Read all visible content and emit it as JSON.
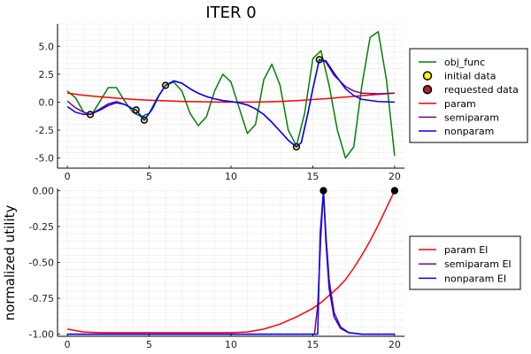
{
  "chart_data": [
    {
      "type": "line",
      "title": "ITER 0",
      "xlabel": "",
      "ylabel": "",
      "xlim": [
        -0.6,
        20.6
      ],
      "ylim": [
        -5.9,
        7.0
      ],
      "xticks": [
        0,
        5,
        10,
        15,
        20
      ],
      "xtick_labels": [
        "0",
        "5",
        "10",
        "15",
        "20"
      ],
      "yticks": [
        5.0,
        2.5,
        0.0,
        -2.5,
        -5.0
      ],
      "ytick_labels": [
        "5.0",
        "2.5",
        "0.0",
        "-2.5",
        "-5.0"
      ],
      "grid": true,
      "legend_position": "right",
      "series": [
        {
          "name": "obj_func",
          "kind": "line",
          "color": "#008000",
          "x": [
            0,
            0.5,
            1,
            1.5,
            2,
            2.5,
            3,
            3.5,
            4,
            4.5,
            5,
            5.5,
            6,
            6.5,
            7,
            7.5,
            8,
            8.5,
            9,
            9.5,
            10,
            10.5,
            11,
            11.5,
            12,
            12.5,
            13,
            13.5,
            14,
            14.5,
            15,
            15.5,
            16,
            16.5,
            17,
            17.5,
            18,
            18.5,
            19,
            19.5,
            20
          ],
          "y": [
            1.0,
            0.4,
            -0.9,
            -1.1,
            0.1,
            1.3,
            1.3,
            0.1,
            -0.9,
            -1.3,
            -1.0,
            0.4,
            1.5,
            1.8,
            1.0,
            -1.0,
            -2.1,
            -1.3,
            1.0,
            2.5,
            1.8,
            -0.5,
            -2.8,
            -2.0,
            2.0,
            3.4,
            1.5,
            -2.5,
            -3.9,
            -1.0,
            3.9,
            4.6,
            1.5,
            -2.5,
            -5.0,
            -4.0,
            1.5,
            5.8,
            6.3,
            2.0,
            -4.8
          ]
        },
        {
          "name": "initial data",
          "kind": "scatter",
          "color": "#ffff00",
          "edge": "#000000",
          "x": [
            1.4,
            4.2,
            4.7,
            6.0,
            14.0,
            15.4
          ],
          "y": [
            -1.1,
            -0.7,
            -1.6,
            1.5,
            -4.0,
            3.8
          ]
        },
        {
          "name": "requested data",
          "kind": "scatter",
          "color": "#b22222",
          "edge": "#000000",
          "x": [],
          "y": []
        },
        {
          "name": "param",
          "kind": "line",
          "color": "#ff0000",
          "x": [
            0,
            1,
            2,
            3,
            4,
            5,
            6,
            7,
            8,
            9,
            10,
            11,
            12,
            13,
            14,
            15,
            16,
            17,
            18,
            19,
            20
          ],
          "y": [
            0.8,
            0.62,
            0.48,
            0.36,
            0.26,
            0.18,
            0.12,
            0.07,
            0.04,
            0.02,
            0.0,
            0.0,
            0.03,
            0.07,
            0.14,
            0.23,
            0.34,
            0.46,
            0.58,
            0.7,
            0.8
          ]
        },
        {
          "name": "semiparam",
          "kind": "line",
          "color": "#800080",
          "x": [
            0,
            0.5,
            1,
            1.4,
            2,
            2.5,
            3,
            3.5,
            4,
            4.2,
            4.7,
            5.2,
            5.6,
            6.0,
            6.5,
            7,
            7.5,
            8,
            8.5,
            9,
            9.5,
            10,
            10.5,
            11,
            11.5,
            12,
            12.5,
            13,
            13.5,
            14,
            14.3,
            14.7,
            15,
            15.4,
            15.8,
            16.3,
            17,
            17.5,
            18,
            19,
            20
          ],
          "y": [
            0.1,
            -0.5,
            -0.9,
            -1.1,
            -0.6,
            -0.15,
            0.05,
            -0.2,
            -0.6,
            -0.7,
            -1.6,
            -0.6,
            0.6,
            1.5,
            1.9,
            1.7,
            1.2,
            0.8,
            0.5,
            0.3,
            0.15,
            0.05,
            -0.05,
            -0.25,
            -0.6,
            -1.1,
            -1.8,
            -2.6,
            -3.4,
            -4.0,
            -3.6,
            -1.0,
            1.2,
            3.8,
            3.6,
            2.4,
            1.4,
            1.0,
            0.8,
            0.75,
            0.8
          ]
        },
        {
          "name": "nonparam",
          "kind": "line",
          "color": "#0000ff",
          "x": [
            0,
            0.5,
            1,
            1.4,
            2,
            2.5,
            3,
            3.5,
            4,
            4.2,
            4.7,
            5.2,
            5.6,
            6.0,
            6.5,
            7,
            7.5,
            8,
            8.5,
            9,
            9.5,
            10,
            10.5,
            11,
            11.5,
            12,
            12.5,
            13,
            13.5,
            14,
            14.3,
            14.7,
            15,
            15.4,
            15.8,
            16.3,
            17,
            17.5,
            18,
            19,
            20
          ],
          "y": [
            -0.4,
            -0.9,
            -1.1,
            -1.1,
            -0.7,
            -0.3,
            -0.05,
            -0.2,
            -0.6,
            -0.7,
            -1.6,
            -0.6,
            0.6,
            1.5,
            1.9,
            1.7,
            1.2,
            0.8,
            0.5,
            0.3,
            0.15,
            0.05,
            -0.05,
            -0.25,
            -0.6,
            -1.1,
            -1.8,
            -2.6,
            -3.4,
            -4.0,
            -3.6,
            -1.0,
            1.2,
            3.8,
            3.7,
            2.6,
            1.2,
            0.6,
            0.25,
            0.05,
            0.0
          ]
        }
      ]
    },
    {
      "type": "line",
      "title": "",
      "xlabel": "",
      "ylabel": "normalized utility",
      "xlim": [
        -0.6,
        20.6
      ],
      "ylim": [
        -1.015,
        0.015
      ],
      "xticks": [
        0,
        5,
        10,
        15,
        20
      ],
      "xtick_labels": [
        "0",
        "5",
        "10",
        "15",
        "20"
      ],
      "yticks": [
        0.0,
        -0.25,
        -0.5,
        -0.75,
        -1.0
      ],
      "ytick_labels": [
        "0.00",
        "-0.25",
        "-0.50",
        "-0.75",
        "-1.00"
      ],
      "grid": true,
      "legend_position": "right",
      "series": [
        {
          "name": "param EI",
          "kind": "line",
          "color": "#ff0000",
          "x": [
            0,
            1,
            2,
            4,
            6,
            8,
            10,
            11,
            12,
            13,
            14,
            15,
            15.5,
            16,
            16.5,
            17,
            17.5,
            18,
            18.5,
            19,
            19.5,
            20
          ],
          "y": [
            -0.965,
            -0.985,
            -0.99,
            -0.99,
            -0.99,
            -0.99,
            -0.99,
            -0.985,
            -0.965,
            -0.93,
            -0.88,
            -0.82,
            -0.78,
            -0.73,
            -0.68,
            -0.62,
            -0.54,
            -0.45,
            -0.35,
            -0.24,
            -0.12,
            0.0
          ]
        },
        {
          "name": "semiparam EI",
          "kind": "line",
          "color": "#800080",
          "x": [
            0,
            5,
            10,
            15.1,
            15.3,
            15.5,
            15.65,
            15.8,
            16.0,
            16.3,
            16.7,
            17.2,
            18,
            19,
            20
          ],
          "y": [
            -1.0,
            -1.0,
            -1.0,
            -1.0,
            -0.8,
            -0.3,
            0.0,
            -0.3,
            -0.62,
            -0.85,
            -0.95,
            -0.99,
            -1.0,
            -1.0,
            -1.0
          ]
        },
        {
          "name": "nonparam EI",
          "kind": "line",
          "color": "#0000ff",
          "x": [
            0,
            5,
            10,
            15.3,
            15.45,
            15.65,
            15.8,
            16.0,
            16.3,
            16.7,
            17.2,
            18,
            19,
            20
          ],
          "y": [
            -1.0,
            -1.0,
            -1.0,
            -1.0,
            -0.3,
            0.0,
            -0.35,
            -0.68,
            -0.88,
            -0.96,
            -0.99,
            -1.0,
            -1.0,
            -1.0
          ]
        },
        {
          "name": "",
          "kind": "scatter",
          "color": "#000000",
          "edge": "#000000",
          "x": [
            15.65,
            20
          ],
          "y": [
            0.0,
            0.0
          ]
        }
      ]
    }
  ]
}
